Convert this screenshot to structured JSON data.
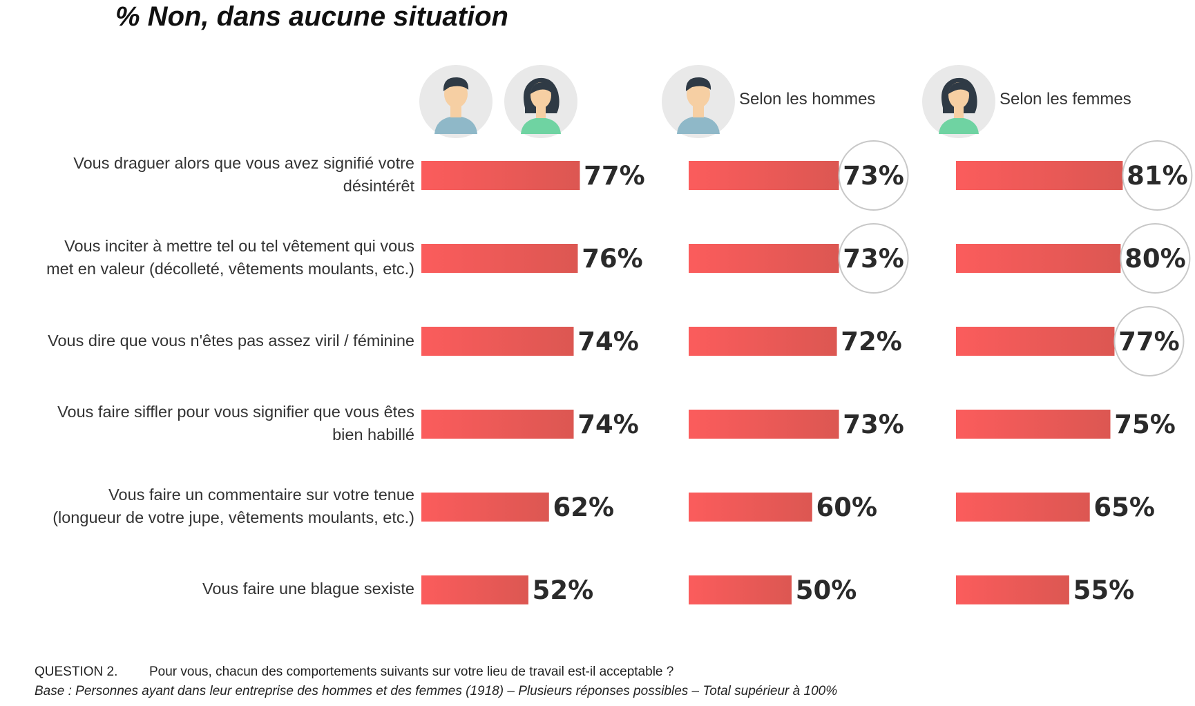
{
  "title": "% Non, dans aucune situation",
  "column_headers": [
    "Selon les hommes",
    "Selon les femmes"
  ],
  "icons": {
    "man": "man-avatar-icon",
    "woman": "woman-avatar-icon"
  },
  "colors": {
    "bar_light": "#fb5c5c",
    "bar_dark": "#dc5752",
    "avatar_bg": "#e9e9e9",
    "circle_stroke": "#c8c8c8",
    "man_shirt": "#8fb8c8",
    "woman_shirt": "#6fd3a2",
    "hair": "#2f3a45",
    "skin": "#f6cfa3"
  },
  "chart_data": {
    "type": "bar",
    "orientation": "horizontal",
    "title": "% Non, dans aucune situation",
    "categories": [
      [
        "Vous draguer alors que vous avez signifié votre",
        "désintérêt"
      ],
      [
        "Vous inciter à mettre tel ou tel vêtement qui vous",
        "met en valeur (décolleté, vêtements moulants, etc.)"
      ],
      [
        "Vous dire que vous n'êtes pas assez viril / féminine"
      ],
      [
        "Vous faire siffler pour vous signifier que vous êtes",
        "bien habillé"
      ],
      [
        "Vous faire un commentaire sur votre tenue",
        "(longueur de votre jupe, vêtements moulants, etc.)"
      ],
      [
        "Vous faire une blague sexiste"
      ]
    ],
    "series": [
      {
        "values": [
          77,
          76,
          74,
          74,
          62,
          52
        ],
        "labels": [
          "77%",
          "76%",
          "74%",
          "74%",
          "62%",
          "52%"
        ],
        "highlighted": [
          false,
          false,
          false,
          false,
          false,
          false
        ]
      },
      {
        "name": "Selon les hommes",
        "values": [
          73,
          73,
          72,
          73,
          60,
          50
        ],
        "labels": [
          "73%",
          "73%",
          "72%",
          "73%",
          "60%",
          "50%"
        ],
        "highlighted": [
          true,
          true,
          false,
          false,
          false,
          false
        ]
      },
      {
        "name": "Selon les femmes",
        "values": [
          81,
          80,
          77,
          75,
          65,
          55
        ],
        "labels": [
          "81%",
          "80%",
          "77%",
          "75%",
          "65%",
          "55%"
        ],
        "highlighted": [
          true,
          true,
          true,
          false,
          false,
          false
        ]
      }
    ],
    "xlim": [
      0,
      100
    ]
  },
  "footer": {
    "question_number": "QUESTION 2.",
    "question_text": "Pour vous, chacun des comportements suivants sur votre lieu de travail est-il acceptable ?",
    "base": "Base : Personnes ayant dans leur entreprise des hommes et des femmes (1918) – Plusieurs réponses possibles – Total supérieur à 100%"
  }
}
